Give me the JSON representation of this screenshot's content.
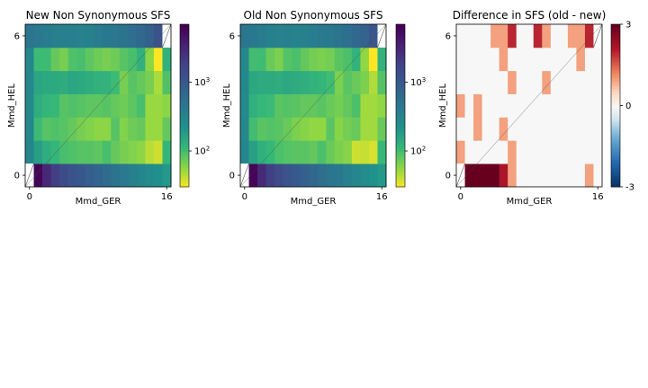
{
  "chart_data": [
    {
      "type": "heatmap",
      "title": "New Non Synonymous SFS",
      "xlabel": "Mmd_GER",
      "ylabel": "Mmd_HEL",
      "x_ticks": [
        "0",
        "16"
      ],
      "y_ticks": [
        "0",
        "6"
      ],
      "n_x": 17,
      "n_y": 7,
      "colormap": "viridis_r",
      "scale": "log",
      "color_range": [
        30,
        7000
      ],
      "colorbar_ticks": [
        "10^2",
        "10^3"
      ],
      "colorbar_tick_values": [
        100,
        1000
      ],
      "masked_cells": [
        [
          0,
          0
        ],
        [
          16,
          6
        ]
      ],
      "values": [
        [
          null,
          6500,
          3200,
          2000,
          1500,
          1200,
          1050,
          900,
          750,
          620,
          520,
          450,
          380,
          320,
          270,
          230,
          200
        ],
        [
          320,
          180,
          140,
          120,
          100,
          95,
          90,
          90,
          85,
          100,
          80,
          70,
          65,
          60,
          45,
          40,
          120
        ],
        [
          300,
          110,
          90,
          95,
          90,
          80,
          70,
          65,
          60,
          60,
          90,
          65,
          75,
          80,
          55,
          55,
          80
        ],
        [
          280,
          140,
          120,
          115,
          90,
          95,
          90,
          85,
          85,
          90,
          80,
          75,
          85,
          100,
          55,
          55,
          60
        ],
        [
          290,
          160,
          150,
          150,
          145,
          160,
          150,
          140,
          130,
          125,
          110,
          70,
          90,
          80,
          70,
          50,
          95
        ],
        [
          300,
          110,
          110,
          80,
          70,
          95,
          100,
          85,
          75,
          70,
          75,
          90,
          100,
          130,
          60,
          30,
          130
        ],
        [
          500,
          450,
          420,
          380,
          360,
          380,
          350,
          370,
          410,
          440,
          470,
          520,
          600,
          700,
          850,
          1200,
          null
        ]
      ]
    },
    {
      "type": "heatmap",
      "title": "Old Non Synonymous SFS",
      "xlabel": "Mmd_GER",
      "ylabel": "Mmd_HEL",
      "x_ticks": [
        "0",
        "16"
      ],
      "y_ticks": [
        "0",
        "6"
      ],
      "n_x": 17,
      "n_y": 7,
      "colormap": "viridis_r",
      "scale": "log",
      "color_range": [
        30,
        7000
      ],
      "colorbar_ticks": [
        "10^2",
        "10^3"
      ],
      "colorbar_tick_values": [
        100,
        1000
      ],
      "masked_cells": [
        [
          0,
          0
        ],
        [
          16,
          6
        ]
      ],
      "values": [
        [
          null,
          6400,
          3100,
          1950,
          1450,
          1180,
          1000,
          870,
          720,
          600,
          500,
          440,
          370,
          310,
          260,
          225,
          195
        ],
        [
          310,
          175,
          135,
          118,
          98,
          92,
          88,
          88,
          82,
          98,
          78,
          68,
          62,
          40,
          42,
          38,
          115
        ],
        [
          295,
          105,
          88,
          92,
          88,
          78,
          68,
          62,
          58,
          58,
          88,
          62,
          72,
          78,
          52,
          52,
          78
        ],
        [
          275,
          135,
          118,
          112,
          88,
          92,
          88,
          82,
          82,
          88,
          78,
          72,
          82,
          98,
          52,
          52,
          58
        ],
        [
          285,
          155,
          148,
          148,
          142,
          155,
          145,
          138,
          128,
          122,
          108,
          68,
          88,
          78,
          68,
          48,
          92
        ],
        [
          295,
          105,
          108,
          78,
          68,
          92,
          98,
          82,
          72,
          68,
          72,
          88,
          98,
          125,
          58,
          30,
          125
        ],
        [
          490,
          440,
          410,
          370,
          350,
          370,
          340,
          360,
          400,
          430,
          460,
          510,
          590,
          690,
          830,
          1150,
          null
        ]
      ]
    },
    {
      "type": "heatmap",
      "title": "Difference in SFS (old - new)",
      "xlabel": "Mmd_GER",
      "ylabel": "Mmd_HEL",
      "x_ticks": [
        "0",
        "16"
      ],
      "y_ticks": [
        "0",
        "6"
      ],
      "n_x": 17,
      "n_y": 7,
      "colormap": "RdBu_r",
      "scale": "linear",
      "color_range": [
        -3,
        3
      ],
      "colorbar_ticks": [
        "-3",
        "0",
        "3"
      ],
      "colorbar_tick_values": [
        -3,
        0,
        3
      ],
      "masked_cells": [
        [
          0,
          0
        ],
        [
          16,
          6
        ]
      ],
      "values": [
        [
          null,
          3,
          3,
          3,
          3,
          2.2,
          1,
          0,
          0,
          0,
          0,
          0,
          0,
          0,
          0,
          1,
          0
        ],
        [
          1,
          0,
          0,
          0,
          0,
          0,
          1,
          0,
          0,
          0,
          0,
          0,
          0,
          0,
          0,
          0,
          0
        ],
        [
          0,
          0,
          1,
          0,
          0,
          1,
          0,
          0,
          0,
          0,
          0,
          0,
          0,
          0,
          0,
          0,
          0
        ],
        [
          1,
          0,
          1,
          0,
          0,
          0,
          0,
          0,
          0,
          0,
          0,
          0,
          0,
          0,
          0,
          0,
          0
        ],
        [
          0,
          0,
          0,
          0,
          0,
          0,
          1,
          0,
          0,
          0,
          1,
          0,
          0,
          0,
          0,
          0,
          0
        ],
        [
          0,
          0,
          0,
          0,
          0,
          1,
          0,
          0,
          0,
          0,
          0,
          0,
          0,
          0,
          1,
          0,
          0
        ],
        [
          0,
          0,
          0,
          0,
          1,
          1,
          2,
          0,
          0,
          2,
          1,
          0,
          0,
          1,
          1,
          2,
          null
        ]
      ]
    }
  ]
}
